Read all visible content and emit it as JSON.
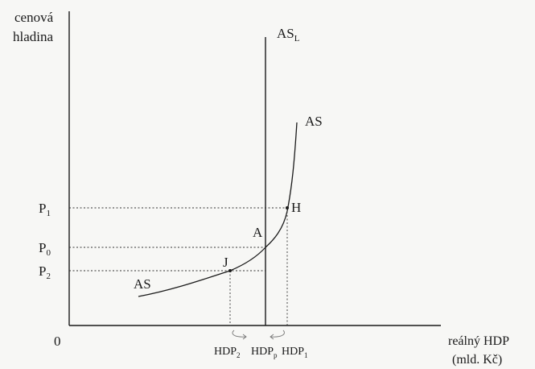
{
  "y_axis_label": [
    "cenová",
    "hladina"
  ],
  "x_axis_label": [
    "reálný HDP",
    "(mld. Kč)"
  ],
  "origin_label": "0",
  "curves": {
    "as_long_run": {
      "base": "AS",
      "sub": "L"
    },
    "as_upper": "AS",
    "as_lower": "AS"
  },
  "prices": [
    {
      "base": "P",
      "sub": "1"
    },
    {
      "base": "P",
      "sub": "0"
    },
    {
      "base": "P",
      "sub": "2"
    }
  ],
  "points": {
    "A": "A",
    "H": "H",
    "J": "J"
  },
  "outputs": [
    {
      "base": "HDP",
      "sub": "2"
    },
    {
      "base": "HDP",
      "sub": "p"
    },
    {
      "base": "HDP",
      "sub": "1"
    }
  ]
}
